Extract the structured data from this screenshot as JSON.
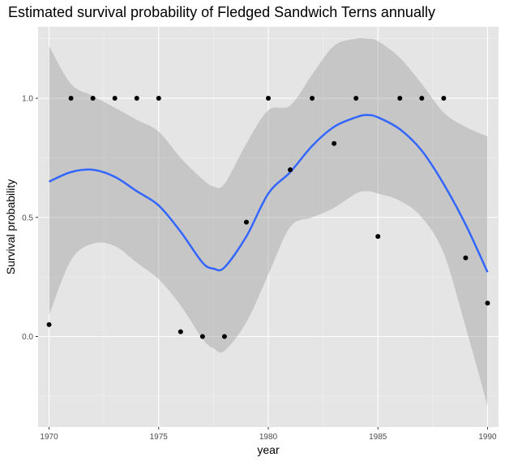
{
  "chart_data": {
    "type": "scatter",
    "title": "Estimated survival probability of Fledged Sandwich Terns annually",
    "xlabel": "year",
    "ylabel": "Survival probability",
    "xlim": [
      1969.5,
      1990.5
    ],
    "ylim": [
      -0.38,
      1.3
    ],
    "x_ticks": [
      1970,
      1975,
      1980,
      1985,
      1990
    ],
    "x_tick_labels": [
      "1970",
      "1975",
      "1980",
      "1985",
      "1990"
    ],
    "y_ticks": [
      0.0,
      0.5,
      1.0
    ],
    "y_tick_labels": [
      "0.0",
      "0.5",
      "1.0"
    ],
    "x_minor_ticks": [
      1972.5,
      1977.5,
      1982.5,
      1987.5
    ],
    "y_minor_ticks": [
      -0.25,
      0.25,
      0.75,
      1.25
    ],
    "grid": true,
    "points": {
      "x": [
        1970,
        1971,
        1972,
        1973,
        1974,
        1975,
        1976,
        1977,
        1978,
        1979,
        1980,
        1981,
        1982,
        1983,
        1984,
        1985,
        1986,
        1987,
        1988,
        1989,
        1990
      ],
      "y": [
        0.05,
        1.0,
        1.0,
        1.0,
        1.0,
        1.0,
        0.02,
        0.0,
        0.0,
        0.48,
        1.0,
        0.7,
        1.0,
        0.81,
        1.0,
        0.42,
        1.0,
        1.0,
        1.0,
        0.33,
        0.14
      ]
    },
    "smooth": {
      "x": [
        1970,
        1971,
        1972,
        1973,
        1974,
        1975,
        1976,
        1977,
        1977.5,
        1978,
        1979,
        1980,
        1981,
        1982,
        1983,
        1984,
        1984.5,
        1985,
        1986,
        1987,
        1988,
        1989,
        1990
      ],
      "y": [
        0.65,
        0.69,
        0.7,
        0.67,
        0.61,
        0.55,
        0.44,
        0.31,
        0.285,
        0.29,
        0.42,
        0.6,
        0.69,
        0.8,
        0.88,
        0.92,
        0.93,
        0.92,
        0.87,
        0.78,
        0.64,
        0.47,
        0.27
      ],
      "lower": [
        0.09,
        0.32,
        0.39,
        0.38,
        0.31,
        0.24,
        0.13,
        -0.01,
        -0.05,
        -0.06,
        0.06,
        0.26,
        0.46,
        0.5,
        0.54,
        0.6,
        0.61,
        0.6,
        0.57,
        0.5,
        0.35,
        0.04,
        -0.29
      ],
      "upper": [
        1.22,
        1.06,
        1.01,
        0.96,
        0.91,
        0.86,
        0.75,
        0.66,
        0.63,
        0.64,
        0.81,
        0.95,
        0.97,
        1.1,
        1.22,
        1.25,
        1.25,
        1.24,
        1.17,
        1.06,
        0.94,
        0.88,
        0.84
      ]
    },
    "colors": {
      "panel_background": "#e5e5e5",
      "grid_major": "#ffffff",
      "point": "#000000",
      "smooth_line": "#3366ff",
      "ribbon": "#999999"
    }
  }
}
